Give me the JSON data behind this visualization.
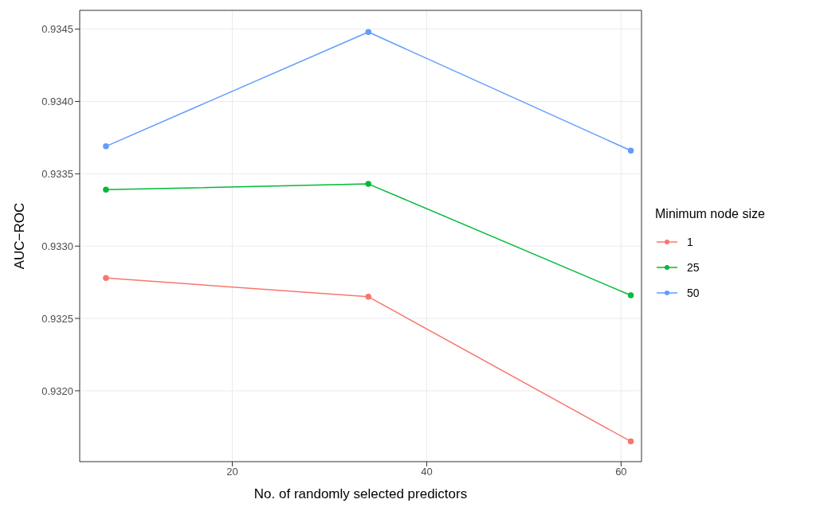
{
  "chart_data": {
    "type": "line",
    "xlabel": "No. of randomly selected predictors",
    "ylabel": "AUC−ROC",
    "legend_title": "Minimum node size",
    "x": [
      7,
      34,
      61
    ],
    "series": [
      {
        "name": "1",
        "color": "#f8766d",
        "values": [
          0.93278,
          0.93265,
          0.93165
        ]
      },
      {
        "name": "25",
        "color": "#00ba38",
        "values": [
          0.93339,
          0.93343,
          0.93266
        ]
      },
      {
        "name": "50",
        "color": "#619cff",
        "values": [
          0.93369,
          0.93448,
          0.93366
        ]
      }
    ],
    "xlim": [
      4.3,
      62.1
    ],
    "xticks": [
      20,
      40,
      60
    ],
    "ylim": [
      0.93151,
      0.93463
    ],
    "yticks": [
      {
        "value": 0.932,
        "label": "0.9320"
      },
      {
        "value": 0.9325,
        "label": "0.9325"
      },
      {
        "value": 0.933,
        "label": "0.9330"
      },
      {
        "value": 0.9335,
        "label": "0.9335"
      },
      {
        "value": 0.934,
        "label": "0.9340"
      },
      {
        "value": 0.9345,
        "label": "0.9345"
      }
    ],
    "grid": true,
    "legend": "right",
    "marker": "circle",
    "line_style": "solid"
  }
}
